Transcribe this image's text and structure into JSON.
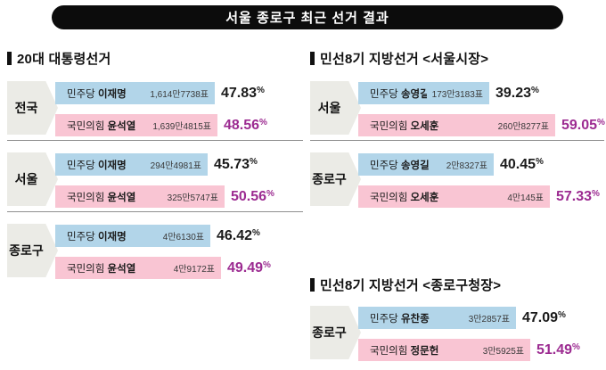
{
  "title": "서울 종로구 최근 선거 결과",
  "colors": {
    "title_bg": "#0c0c0c",
    "title_fg": "#ffffff",
    "dem_bar": "#b2d5e9",
    "ppp_bar": "#f9c5d3",
    "winner_pct": "#9c2b91",
    "loser_pct": "#1a1a1a",
    "region_arrow_bg": "#ebebe6",
    "divider": "#8f8f8f"
  },
  "sections": [
    {
      "title": "20대 대통령선거",
      "groups": [
        {
          "region": "전국",
          "rows": [
            {
              "party": "민주당",
              "candidate": "이재명",
              "votes": "1,614만7738표",
              "pct": "47.83",
              "color": "blue",
              "winner": false
            },
            {
              "party": "국민의힘",
              "candidate": "윤석열",
              "votes": "1,639만4815표",
              "pct": "48.56",
              "color": "pink",
              "winner": true
            }
          ]
        },
        {
          "region": "서울",
          "rows": [
            {
              "party": "민주당",
              "candidate": "이재명",
              "votes": "294만4981표",
              "pct": "45.73",
              "color": "blue",
              "winner": false
            },
            {
              "party": "국민의힘",
              "candidate": "윤석열",
              "votes": "325만5747표",
              "pct": "50.56",
              "color": "pink",
              "winner": true
            }
          ]
        },
        {
          "region": "종로구",
          "rows": [
            {
              "party": "민주당",
              "candidate": "이재명",
              "votes": "4만6130표",
              "pct": "46.42",
              "color": "blue",
              "winner": false
            },
            {
              "party": "국민의힘",
              "candidate": "윤석열",
              "votes": "4만9172표",
              "pct": "49.49",
              "color": "pink",
              "winner": true
            }
          ]
        }
      ]
    },
    {
      "title": "민선8기 지방선거 <서울시장>",
      "groups": [
        {
          "region": "서울",
          "rows": [
            {
              "party": "민주당",
              "candidate": "송영길",
              "votes": "173만3183표",
              "pct": "39.23",
              "color": "blue",
              "winner": false
            },
            {
              "party": "국민의힘",
              "candidate": "오세훈",
              "votes": "260만8277표",
              "pct": "59.05",
              "color": "pink",
              "winner": true
            }
          ]
        },
        {
          "region": "종로구",
          "rows": [
            {
              "party": "민주당",
              "candidate": "송영길",
              "votes": "2만8327표",
              "pct": "40.45",
              "color": "blue",
              "winner": false
            },
            {
              "party": "국민의힘",
              "candidate": "오세훈",
              "votes": "4만145표",
              "pct": "57.33",
              "color": "pink",
              "winner": true
            }
          ]
        }
      ]
    },
    {
      "title": "민선8기 지방선거 <종로구청장>",
      "groups": [
        {
          "region": "종로구",
          "rows": [
            {
              "party": "민주당",
              "candidate": "유찬종",
              "votes": "3만2857표",
              "pct": "47.09",
              "color": "blue",
              "winner": false
            },
            {
              "party": "국민의힘",
              "candidate": "정문헌",
              "votes": "3만5925표",
              "pct": "51.49",
              "color": "pink",
              "winner": true
            }
          ]
        }
      ]
    }
  ],
  "chart_data": [
    {
      "type": "bar",
      "title": "20대 대통령선거",
      "categories": [
        "전국",
        "서울",
        "종로구"
      ],
      "series": [
        {
          "name": "민주당 이재명",
          "values": [
            47.83,
            45.73,
            46.42
          ],
          "votes": [
            "1,614만7738표",
            "294만4981표",
            "4만6130표"
          ],
          "color": "#b2d5e9"
        },
        {
          "name": "국민의힘 윤석열",
          "values": [
            48.56,
            50.56,
            49.49
          ],
          "votes": [
            "1,639만4815표",
            "325만5747표",
            "4만9172표"
          ],
          "color": "#f9c5d3"
        }
      ],
      "unit": "%",
      "xlim": [
        0,
        100
      ],
      "orientation": "horizontal",
      "grid": false,
      "legend_position": "none"
    },
    {
      "type": "bar",
      "title": "민선8기 지방선거 <서울시장>",
      "categories": [
        "서울",
        "종로구"
      ],
      "series": [
        {
          "name": "민주당 송영길",
          "values": [
            39.23,
            40.45
          ],
          "votes": [
            "173만3183표",
            "2만8327표"
          ],
          "color": "#b2d5e9"
        },
        {
          "name": "국민의힘 오세훈",
          "values": [
            59.05,
            57.33
          ],
          "votes": [
            "260만8277표",
            "4만145표"
          ],
          "color": "#f9c5d3"
        }
      ],
      "unit": "%",
      "xlim": [
        0,
        100
      ],
      "orientation": "horizontal",
      "grid": false,
      "legend_position": "none"
    },
    {
      "type": "bar",
      "title": "민선8기 지방선거 <종로구청장>",
      "categories": [
        "종로구"
      ],
      "series": [
        {
          "name": "민주당 유찬종",
          "values": [
            47.09
          ],
          "votes": [
            "3만2857표"
          ],
          "color": "#b2d5e9"
        },
        {
          "name": "국민의힘 정문헌",
          "values": [
            51.49
          ],
          "votes": [
            "3만5925표"
          ],
          "color": "#f9c5d3"
        }
      ],
      "unit": "%",
      "xlim": [
        0,
        100
      ],
      "orientation": "horizontal",
      "grid": false,
      "legend_position": "none"
    }
  ]
}
